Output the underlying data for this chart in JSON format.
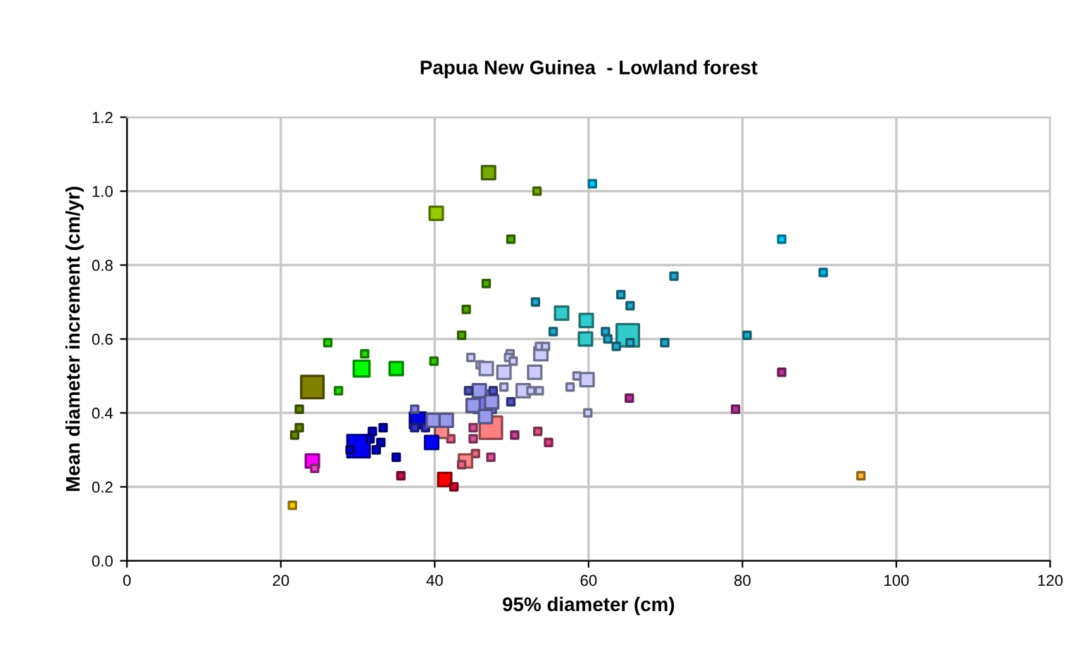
{
  "chart_data": {
    "type": "bubble",
    "title": "Papua New Guinea  - Lowland forest",
    "xlabel": "95% diameter (cm)",
    "ylabel": "Mean diameter increment (cm/yr)",
    "xlim": [
      0,
      120
    ],
    "xticks": [
      0,
      20,
      40,
      60,
      80,
      100,
      120
    ],
    "ylim": [
      0,
      1.2
    ],
    "yticks": [
      {
        "value": 0,
        "label": "0.0"
      },
      {
        "value": 0.2,
        "label": "0.2"
      },
      {
        "value": 0.4,
        "label": "0.4"
      },
      {
        "value": 0.6,
        "label": "0.6"
      },
      {
        "value": 0.8,
        "label": "0.8"
      },
      {
        "value": 1.0,
        "label": "1.0"
      },
      {
        "value": 1.2,
        "label": "1.2"
      }
    ],
    "grid": true,
    "legend": false,
    "marker": "square",
    "series": [
      {
        "x": [
          47.0,
          40.2,
          53.3,
          49.9,
          46.7,
          44.1,
          43.5,
          39.9,
          26.1,
          30.9,
          30.5,
          35.0,
          27.5,
          24.1,
          22.4,
          22.4,
          21.8
        ],
        "values": [
          1.05,
          0.94,
          1.0,
          0.87,
          0.75,
          0.68,
          0.61,
          0.54,
          0.59,
          0.56,
          0.52,
          0.52,
          0.46,
          0.47,
          0.41,
          0.36,
          0.34
        ],
        "sizes": [
          0.35,
          0.35,
          0.1,
          0.1,
          0.1,
          0.1,
          0.1,
          0.1,
          0.1,
          0.1,
          0.5,
          0.35,
          0.1,
          1,
          0.1,
          0.1,
          0.1
        ],
        "colors": [
          "#77aa00",
          "#99cc00",
          "#77aa00",
          "#55aa00",
          "#55aa00",
          "#55aa00",
          "#55aa00",
          "#33cc00",
          "#22dd00",
          "#22dd00",
          "#00ff00",
          "#00ee00",
          "#22dd00",
          "#808000",
          "#668800",
          "#668800",
          "#668800"
        ]
      },
      {
        "x": [
          24.1,
          24.4,
          21.5,
          35.6,
          41.3,
          42.5,
          45.3,
          44.0,
          43.5,
          47.3,
          45.0,
          45.0,
          42.1,
          40.9,
          47.3,
          50.4,
          53.4,
          54.8,
          65.3,
          79.1,
          85.1,
          95.4
        ],
        "values": [
          0.27,
          0.25,
          0.15,
          0.23,
          0.22,
          0.2,
          0.29,
          0.27,
          0.26,
          0.28,
          0.36,
          0.33,
          0.33,
          0.35,
          0.36,
          0.34,
          0.35,
          0.32,
          0.44,
          0.41,
          0.51,
          0.23
        ],
        "sizes": [
          0.35,
          0.1,
          0.1,
          0.1,
          0.35,
          0.1,
          0.1,
          0.35,
          0.1,
          0.1,
          0.1,
          0.1,
          0.1,
          0.35,
          1,
          0.1,
          0.1,
          0.1,
          0.1,
          0.1,
          0.1,
          0.1
        ],
        "colors": [
          "#ff00ff",
          "#ee44cc",
          "#ffcc00",
          "#cc1155",
          "#ff0000",
          "#dd0033",
          "#ee6688",
          "#ff8888",
          "#ee6688",
          "#dd5599",
          "#dd5599",
          "#dd5599",
          "#ee6688",
          "#ff8888",
          "#ff8080",
          "#cc4499",
          "#dd5588",
          "#dd4488",
          "#bb3399",
          "#bb3399",
          "#bb3399",
          "#ffbb33"
        ]
      },
      {
        "x": [
          30.1,
          29.0,
          31.6,
          31.9,
          33.0,
          32.4,
          33.3,
          35.0,
          37.8,
          39.6,
          37.4,
          37.4,
          38.8,
          39.8,
          41.5,
          46.5,
          45.8,
          45.0,
          47.4,
          46.6,
          44.4,
          47.6,
          49.9
        ],
        "values": [
          0.31,
          0.3,
          0.33,
          0.35,
          0.32,
          0.3,
          0.36,
          0.28,
          0.38,
          0.32,
          0.41,
          0.36,
          0.36,
          0.38,
          0.38,
          0.43,
          0.46,
          0.42,
          0.43,
          0.39,
          0.46,
          0.46,
          0.43
        ],
        "sizes": [
          1,
          0.1,
          0.1,
          0.1,
          0.1,
          0.1,
          0.1,
          0.1,
          0.5,
          0.35,
          0.1,
          0.1,
          0.1,
          0.35,
          0.35,
          1,
          0.35,
          0.35,
          0.35,
          0.35,
          0.1,
          0.1,
          0.1
        ],
        "colors": [
          "#0000ee",
          "#0000cc",
          "#0000cc",
          "#0000cc",
          "#0000cc",
          "#0000cc",
          "#0000cc",
          "#0000cc",
          "#0000dd",
          "#0000ff",
          "#8888ee",
          "#3333cc",
          "#3333cc",
          "#9999ee",
          "#9999ee",
          "#7777ee",
          "#9999ee",
          "#9999ee",
          "#9999ee",
          "#9999ee",
          "#5555cc",
          "#5555cc",
          "#5555cc"
        ]
      },
      {
        "x": [
          44.7,
          45.9,
          46.7,
          49.0,
          49.8,
          49.6,
          50.2,
          53.0,
          53.8,
          53.6,
          54.4,
          49.0,
          51.5,
          52.5,
          53.6,
          58.5,
          59.8,
          57.6,
          59.9
        ],
        "values": [
          0.55,
          0.53,
          0.52,
          0.51,
          0.56,
          0.55,
          0.54,
          0.51,
          0.56,
          0.58,
          0.58,
          0.47,
          0.46,
          0.46,
          0.46,
          0.5,
          0.49,
          0.47,
          0.4
        ],
        "sizes": [
          0.1,
          0.1,
          0.35,
          0.35,
          0.1,
          0.1,
          0.1,
          0.35,
          0.35,
          0.1,
          0.1,
          0.1,
          0.35,
          0.1,
          0.1,
          0.1,
          0.35,
          0.1,
          0.1
        ],
        "colors": [
          "#ccccff",
          "#ccccff",
          "#ccccff",
          "#ccccff",
          "#ccccff",
          "#ccccff",
          "#ccccff",
          "#ccccff",
          "#ccccff",
          "#ccccff",
          "#ccccff",
          "#ccccff",
          "#ccccff",
          "#ccccff",
          "#ccccff",
          "#ccccff",
          "#ccccff",
          "#ccccff",
          "#ccccff"
        ]
      },
      {
        "x": [
          60.5,
          85.1,
          90.5,
          71.1,
          64.2,
          65.4,
          56.5,
          59.7,
          59.6,
          55.4,
          53.1,
          62.2,
          62.5,
          65.1,
          65.4,
          63.6,
          69.9,
          80.6
        ],
        "values": [
          1.02,
          0.87,
          0.78,
          0.77,
          0.72,
          0.69,
          0.67,
          0.65,
          0.6,
          0.62,
          0.7,
          0.62,
          0.6,
          0.61,
          0.59,
          0.58,
          0.59,
          0.61
        ],
        "sizes": [
          0.1,
          0.1,
          0.1,
          0.1,
          0.1,
          0.1,
          0.35,
          0.35,
          0.35,
          0.1,
          0.1,
          0.1,
          0.1,
          1,
          0.1,
          0.1,
          0.1,
          0.1
        ],
        "colors": [
          "#00ccff",
          "#00ccff",
          "#00bbee",
          "#22aacc",
          "#22aacc",
          "#22aacc",
          "#33cccc",
          "#33cccc",
          "#33cccc",
          "#22aacc",
          "#22aacc",
          "#22aacc",
          "#22aacc",
          "#33cccc",
          "#22aacc",
          "#22aacc",
          "#22aacc",
          "#22aacc"
        ]
      }
    ]
  }
}
